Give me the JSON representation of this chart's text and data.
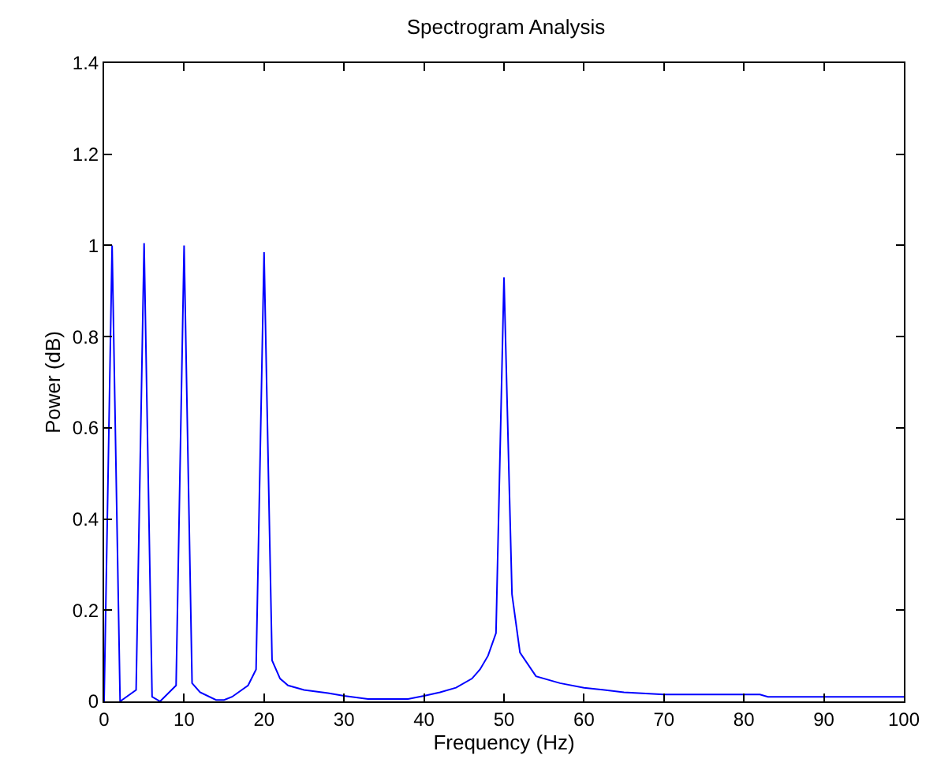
{
  "chart_data": {
    "type": "line",
    "title": "Spectrogram Analysis",
    "xlabel": "Frequency (Hz)",
    "ylabel": "Power (dB)",
    "x": [
      0,
      1,
      2,
      4,
      5,
      6,
      7,
      9,
      10,
      11,
      12,
      14,
      15,
      16,
      18,
      19,
      20,
      21,
      22,
      23,
      25,
      28,
      30,
      33,
      38,
      40,
      42,
      44,
      46,
      47,
      48,
      49,
      50,
      51,
      52,
      54,
      57,
      60,
      65,
      70,
      82,
      83,
      100
    ],
    "series": [
      {
        "color": "#0000ff",
        "values": [
          0.0,
          1.0,
          0.0,
          0.025,
          1.005,
          0.01,
          0.0,
          0.035,
          1.0,
          0.04,
          0.02,
          0.003,
          0.003,
          0.01,
          0.035,
          0.07,
          0.985,
          0.09,
          0.05,
          0.035,
          0.025,
          0.018,
          0.012,
          0.005,
          0.005,
          0.012,
          0.02,
          0.03,
          0.05,
          0.07,
          0.1,
          0.15,
          0.93,
          0.235,
          0.107,
          0.055,
          0.04,
          0.03,
          0.02,
          0.015,
          0.015,
          0.01,
          0.01
        ]
      }
    ],
    "xlim": [
      0,
      100
    ],
    "xticks": [
      0,
      10,
      20,
      30,
      40,
      50,
      60,
      70,
      80,
      90,
      100
    ],
    "ylim": [
      0,
      1.4
    ],
    "yticks": [
      0,
      0.2,
      0.4,
      0.6,
      0.8,
      1,
      1.2,
      1.4
    ],
    "legend": false,
    "marker": "none",
    "line_style": "solid"
  }
}
